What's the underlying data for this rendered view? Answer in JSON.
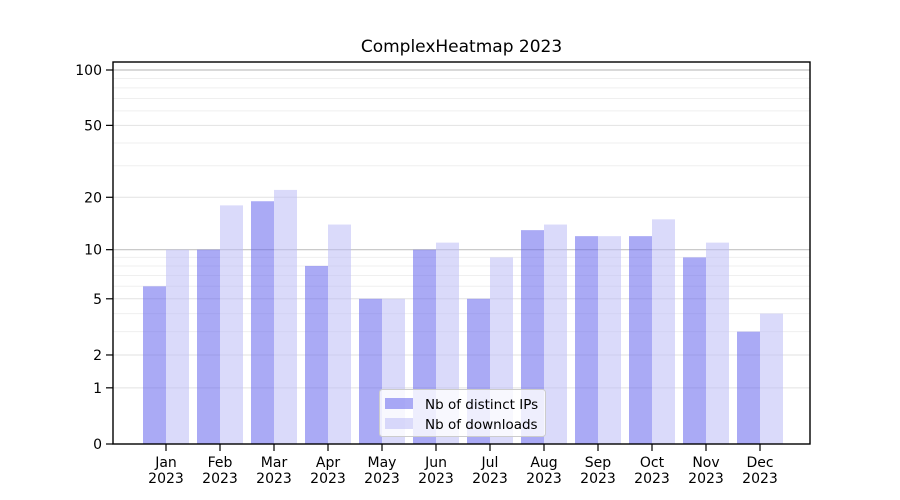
{
  "chart_data": {
    "type": "bar",
    "title": "ComplexHeatmap 2023",
    "categories": [
      "Jan",
      "Feb",
      "Mar",
      "Apr",
      "May",
      "Jun",
      "Jul",
      "Aug",
      "Sep",
      "Oct",
      "Nov",
      "Dec"
    ],
    "x_sub_label": "2023",
    "series": [
      {
        "name": "Nb of distinct IPs",
        "color": "#6464ed",
        "rendered_color": "#a9a9f4",
        "values": [
          6,
          10,
          19,
          8,
          5,
          10,
          5,
          13,
          12,
          12,
          9,
          3
        ]
      },
      {
        "name": "Nb of downloads",
        "color": "#bcbcf6",
        "rendered_color": "#d8d8f8",
        "values": [
          10,
          18,
          22,
          14,
          5,
          11,
          9,
          14,
          12,
          15,
          11,
          4
        ]
      }
    ],
    "bar_opacity": 0.55,
    "scale": "log1p",
    "ylim": [
      0,
      100
    ],
    "y_ticks": [
      100,
      50,
      20,
      10,
      5,
      2,
      1,
      0
    ],
    "y_grid_strong": [
      10,
      100
    ],
    "y_grid_major": [
      1,
      2,
      5,
      20,
      50
    ],
    "y_grid_minor": [
      3,
      4,
      6,
      7,
      8,
      9,
      30,
      40,
      60,
      70,
      80,
      90
    ],
    "grid": true,
    "legend_position": "bottom-center",
    "xlabel": "",
    "ylabel": ""
  },
  "colors": {
    "background": "#ffffff",
    "frame": "#000000",
    "grid_strong": "#c2c2c2",
    "grid_major": "#e2e2e2",
    "grid_minor": "#efefef",
    "legend_border": "#cccccc",
    "legend_bg": "#ffffff",
    "text": "#000000"
  }
}
